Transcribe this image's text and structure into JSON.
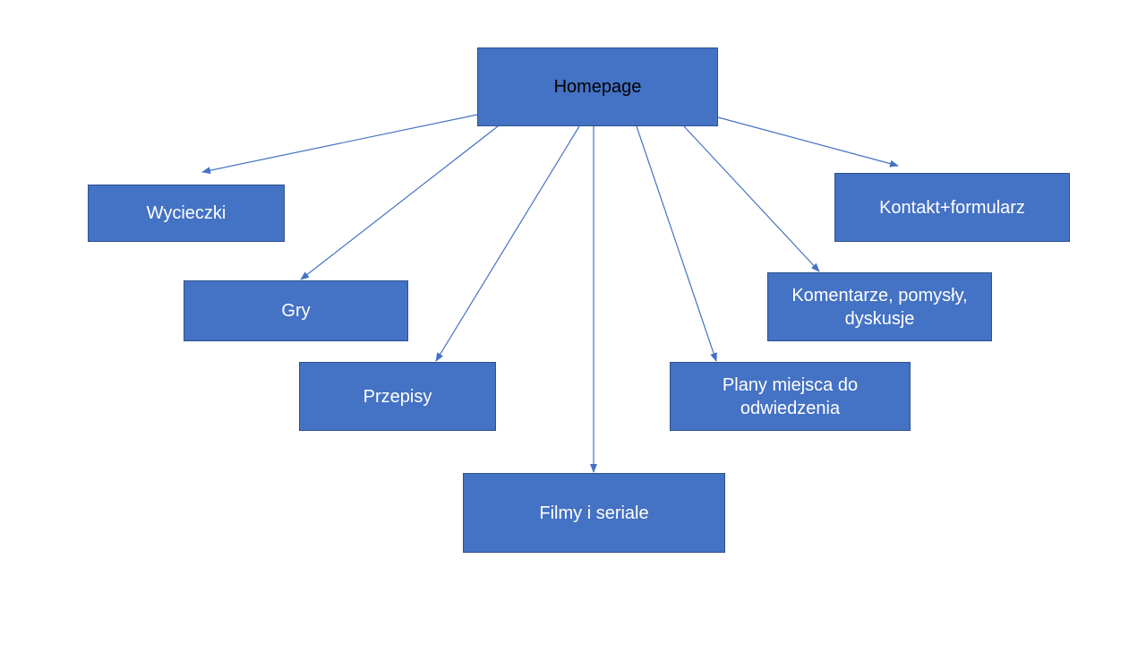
{
  "diagram": {
    "colors": {
      "box_fill": "#4472c4",
      "box_border": "#2f528f",
      "arrow": "#4472c4",
      "root_text": "#000000",
      "child_text": "#ffffff"
    },
    "root": {
      "label": "Homepage"
    },
    "children": [
      {
        "id": "wycieczki",
        "label": "Wycieczki"
      },
      {
        "id": "gry",
        "label": "Gry"
      },
      {
        "id": "przepisy",
        "label": "Przepisy"
      },
      {
        "id": "filmy",
        "label": "Filmy i seriale"
      },
      {
        "id": "plany",
        "label": "Plany miejsca do\nodwiedzenia"
      },
      {
        "id": "komentarze",
        "label": "Komentarze, pomysły,\ndyskusje"
      },
      {
        "id": "kontakt",
        "label": "Kontakt+formularz"
      }
    ],
    "edges": [
      {
        "from": "Homepage",
        "to": "Wycieczki"
      },
      {
        "from": "Homepage",
        "to": "Gry"
      },
      {
        "from": "Homepage",
        "to": "Przepisy"
      },
      {
        "from": "Homepage",
        "to": "Filmy i seriale"
      },
      {
        "from": "Homepage",
        "to": "Plany miejsca do odwiedzenia"
      },
      {
        "from": "Homepage",
        "to": "Komentarze, pomysły, dyskusje"
      },
      {
        "from": "Homepage",
        "to": "Kontakt+formularz"
      }
    ]
  }
}
